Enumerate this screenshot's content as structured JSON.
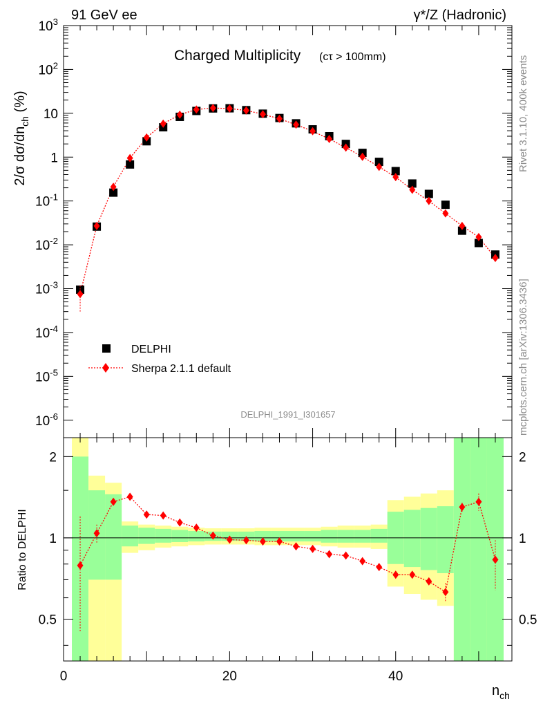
{
  "header": {
    "left": "91 GeV ee",
    "right": "γ*/Z (Hadronic)"
  },
  "side_text": {
    "top": "Rivet 3.1.10,  400k events",
    "bottom": "mcplots.cern.ch [arXiv:1306.3436]"
  },
  "watermark": "DELPHI_1991_I301657",
  "chart_data": [
    {
      "type": "scatter",
      "title": "Charged Multiplicity",
      "subtitle": "(cτ > 100mm)",
      "ylabel": "2/σ dσ/dn_ch (%)",
      "xlim": [
        0,
        54
      ],
      "ylim": [
        4e-07,
        1000
      ],
      "yscale": "log",
      "ytick_labels": [
        "10^-6",
        "10^-5",
        "10^-4",
        "10^-3",
        "10^-2",
        "10^-1",
        "1",
        "10",
        "10^2",
        "10^3"
      ],
      "legend_placement": "lower-left",
      "series": [
        {
          "name": "DELPHI",
          "marker": "square",
          "color": "#000000",
          "x": [
            2,
            4,
            6,
            8,
            10,
            12,
            14,
            16,
            18,
            20,
            22,
            24,
            26,
            28,
            30,
            32,
            34,
            36,
            38,
            40,
            42,
            44,
            46,
            48,
            50,
            52
          ],
          "y": [
            0.00095,
            0.026,
            0.155,
            0.68,
            2.3,
            4.8,
            8.3,
            11.3,
            12.9,
            13.0,
            11.8,
            9.8,
            7.8,
            5.9,
            4.3,
            3.0,
            2.0,
            1.25,
            0.78,
            0.48,
            0.25,
            0.145,
            0.082,
            0.021,
            0.011,
            0.006
          ]
        },
        {
          "name": "Sherpa 2.1.1 default",
          "marker": "diamond",
          "color": "#ff0000",
          "x": [
            2,
            4,
            6,
            8,
            10,
            12,
            14,
            16,
            18,
            20,
            22,
            24,
            26,
            28,
            30,
            32,
            34,
            36,
            38,
            40,
            42,
            44,
            46,
            48,
            50,
            52
          ],
          "y": [
            0.00075,
            0.027,
            0.21,
            0.95,
            2.8,
            5.8,
            9.3,
            12.2,
            13.2,
            12.8,
            11.6,
            9.5,
            7.5,
            5.5,
            3.9,
            2.6,
            1.65,
            1.02,
            0.6,
            0.35,
            0.18,
            0.1,
            0.052,
            0.027,
            0.015,
            0.005
          ]
        }
      ]
    },
    {
      "type": "scatter",
      "ylabel": "Ratio to DELPHI",
      "xlabel": "n_ch",
      "xlim": [
        0,
        54
      ],
      "ylim": [
        0.35,
        2.35
      ],
      "yscale": "log",
      "ytick_labels": [
        "0.5",
        "1",
        "2"
      ],
      "xtick_labels": [
        "0",
        "20",
        "40"
      ],
      "bands": {
        "edges": [
          1,
          3,
          5,
          7,
          9,
          11,
          13,
          15,
          17,
          19,
          21,
          23,
          25,
          27,
          29,
          31,
          33,
          35,
          37,
          39,
          41,
          43,
          45,
          47,
          49,
          51,
          53
        ],
        "inner_color": "#99ff99",
        "outer_color": "#ffff99",
        "inner_low": [
          0.3,
          0.7,
          0.7,
          0.93,
          0.95,
          0.96,
          0.965,
          0.97,
          0.975,
          0.975,
          0.975,
          0.97,
          0.97,
          0.97,
          0.97,
          0.96,
          0.96,
          0.96,
          0.96,
          0.8,
          0.78,
          0.76,
          0.74,
          0.3,
          0.3,
          0.3
        ],
        "inner_high": [
          2.0,
          1.5,
          1.45,
          1.11,
          1.09,
          1.08,
          1.07,
          1.06,
          1.055,
          1.055,
          1.055,
          1.06,
          1.06,
          1.06,
          1.06,
          1.07,
          1.07,
          1.07,
          1.08,
          1.25,
          1.27,
          1.29,
          1.31,
          2.5,
          2.5,
          2.5
        ],
        "outer_low": [
          0.3,
          0.3,
          0.3,
          0.88,
          0.9,
          0.92,
          0.93,
          0.94,
          0.945,
          0.945,
          0.945,
          0.94,
          0.94,
          0.94,
          0.94,
          0.93,
          0.92,
          0.92,
          0.91,
          0.66,
          0.62,
          0.59,
          0.56,
          0.3,
          0.3,
          0.3
        ],
        "outer_high": [
          2.5,
          1.7,
          1.6,
          1.15,
          1.12,
          1.11,
          1.1,
          1.09,
          1.085,
          1.085,
          1.085,
          1.09,
          1.09,
          1.09,
          1.09,
          1.1,
          1.11,
          1.11,
          1.12,
          1.38,
          1.42,
          1.46,
          1.5,
          2.5,
          2.5,
          1.85
        ]
      },
      "series": [
        {
          "name": "Sherpa 2.1.1 default",
          "marker": "diamond",
          "color": "#ff0000",
          "x": [
            2,
            4,
            6,
            8,
            10,
            12,
            14,
            16,
            18,
            20,
            22,
            24,
            26,
            28,
            30,
            32,
            34,
            36,
            38,
            40,
            42,
            44,
            46,
            48,
            50,
            52
          ],
          "y": [
            0.79,
            1.04,
            1.36,
            1.42,
            1.22,
            1.21,
            1.14,
            1.09,
            1.02,
            0.985,
            0.98,
            0.97,
            0.97,
            0.93,
            0.91,
            0.87,
            0.86,
            0.82,
            0.78,
            0.73,
            0.73,
            0.69,
            0.63,
            1.3,
            1.36,
            0.83
          ],
          "err_low": [
            0.45,
            0.96,
            1.32,
            1.41,
            1.21,
            1.2,
            1.13,
            1.08,
            1.015,
            0.98,
            0.975,
            0.965,
            0.965,
            0.925,
            0.905,
            0.865,
            0.855,
            0.815,
            0.775,
            0.725,
            0.72,
            0.68,
            0.58,
            1.25,
            1.26,
            0.64
          ],
          "err_high": [
            1.2,
            1.12,
            1.4,
            1.43,
            1.23,
            1.22,
            1.15,
            1.1,
            1.025,
            0.99,
            0.985,
            0.975,
            0.975,
            0.935,
            0.915,
            0.875,
            0.865,
            0.825,
            0.785,
            0.735,
            0.74,
            0.7,
            0.68,
            1.35,
            1.46,
            0.98
          ]
        }
      ]
    }
  ]
}
